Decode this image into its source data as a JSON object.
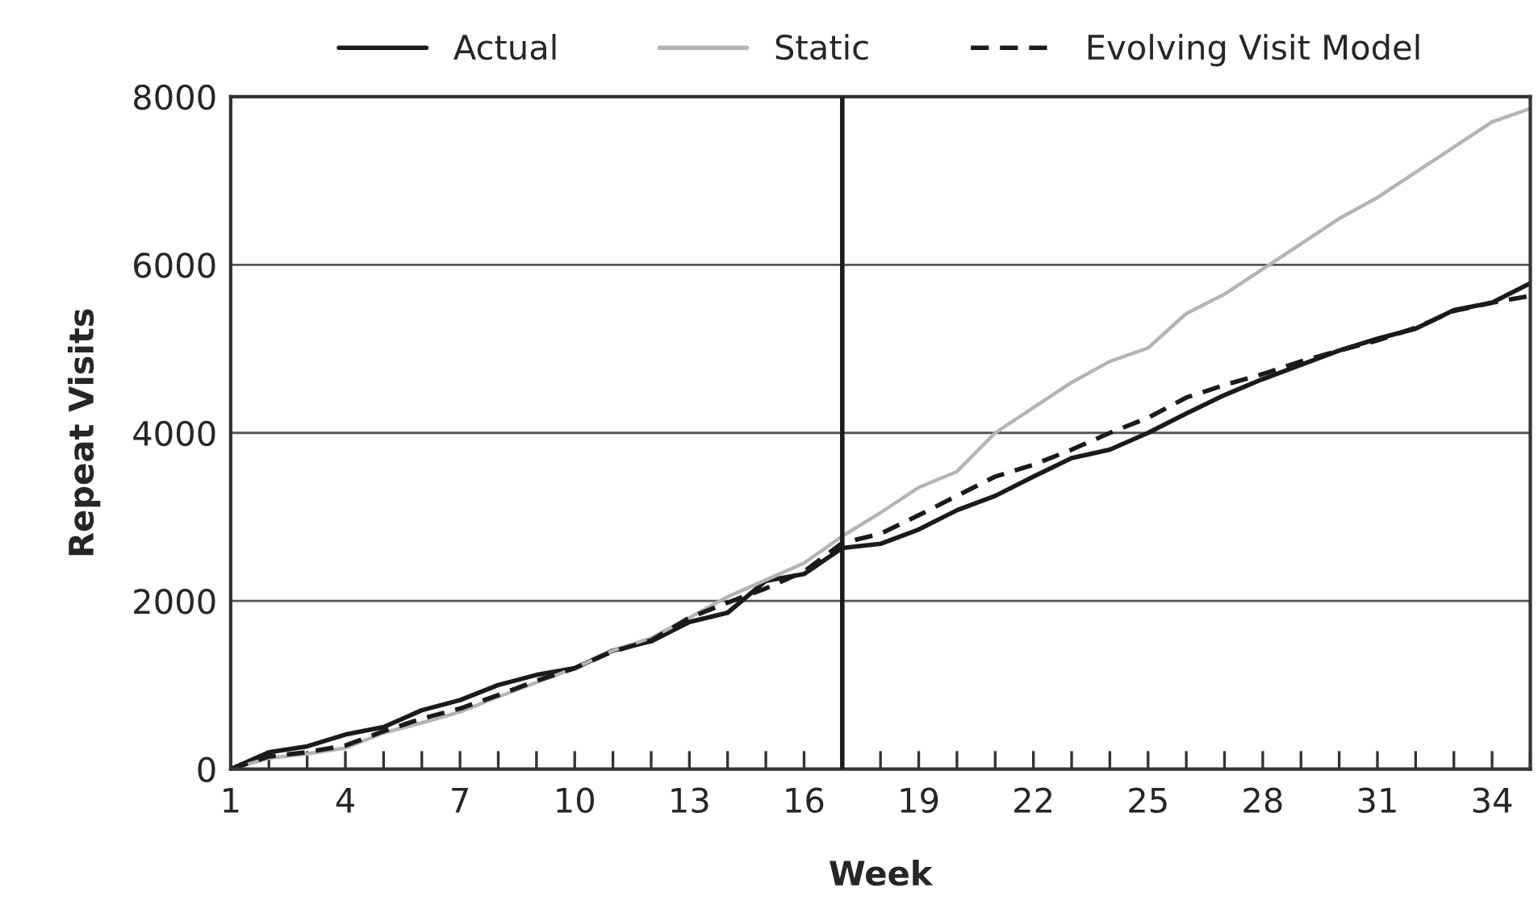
{
  "chart_data": {
    "type": "line",
    "xlabel": "Week",
    "ylabel": "Repeat Visits",
    "x": [
      1,
      2,
      3,
      4,
      5,
      6,
      7,
      8,
      9,
      10,
      11,
      12,
      13,
      14,
      15,
      16,
      17,
      18,
      19,
      20,
      21,
      22,
      23,
      24,
      25,
      26,
      27,
      28,
      29,
      30,
      31,
      32,
      33,
      34,
      35
    ],
    "series": [
      {
        "name": "Actual",
        "color": "#1a1a1a",
        "line_style": "solid",
        "values": [
          0,
          200,
          270,
          410,
          500,
          700,
          820,
          1000,
          1120,
          1200,
          1410,
          1520,
          1750,
          1860,
          2240,
          2320,
          2630,
          2680,
          2850,
          3080,
          3250,
          3480,
          3700,
          3800,
          4000,
          4230,
          4450,
          4640,
          4810,
          4980,
          5120,
          5240,
          5460,
          5550,
          5780
        ]
      },
      {
        "name": "Static",
        "color": "#b4b4b4",
        "line_style": "solid",
        "values": [
          0,
          130,
          180,
          250,
          430,
          550,
          680,
          860,
          1030,
          1200,
          1410,
          1560,
          1800,
          2050,
          2250,
          2450,
          2770,
          3050,
          3350,
          3540,
          4000,
          4300,
          4600,
          4850,
          5010,
          5420,
          5650,
          5950,
          6250,
          6550,
          6800,
          7100,
          7400,
          7700,
          7860
        ]
      },
      {
        "name": "Evolving Visit Model",
        "color": "#1a1a1a",
        "line_style": "dashed",
        "values": [
          0,
          150,
          200,
          280,
          450,
          600,
          720,
          880,
          1050,
          1200,
          1400,
          1530,
          1800,
          1980,
          2150,
          2350,
          2690,
          2800,
          3020,
          3250,
          3480,
          3620,
          3800,
          4000,
          4180,
          4420,
          4570,
          4700,
          4850,
          4980,
          5100,
          5250,
          5450,
          5550,
          5630
        ]
      }
    ],
    "xlim": [
      1,
      35
    ],
    "xticks": [
      1,
      {
        "value": 2,
        "label": null
      },
      {
        "value": 3,
        "label": null
      },
      4,
      {
        "value": 5,
        "label": null
      },
      {
        "value": 6,
        "label": null
      },
      7,
      {
        "value": 8,
        "label": null
      },
      {
        "value": 9,
        "label": null
      },
      10,
      {
        "value": 11,
        "label": null
      },
      {
        "value": 12,
        "label": null
      },
      13,
      {
        "value": 14,
        "label": null
      },
      {
        "value": 15,
        "label": null
      },
      16,
      {
        "value": 17,
        "label": null
      },
      {
        "value": 18,
        "label": null
      },
      19,
      {
        "value": 20,
        "label": null
      },
      {
        "value": 21,
        "label": null
      },
      22,
      {
        "value": 23,
        "label": null
      },
      {
        "value": 24,
        "label": null
      },
      25,
      {
        "value": 26,
        "label": null
      },
      {
        "value": 27,
        "label": null
      },
      28,
      {
        "value": 29,
        "label": null
      },
      {
        "value": 30,
        "label": null
      },
      31,
      {
        "value": 32,
        "label": null
      },
      {
        "value": 33,
        "label": null
      },
      34,
      {
        "value": 35,
        "label": null
      }
    ],
    "ylim": [
      0,
      8000
    ],
    "yticks": [
      0,
      2000,
      4000,
      6000,
      8000
    ],
    "ref_lines": [
      {
        "axis": "x",
        "value": 17,
        "color": "#1a1a1a",
        "line_style": "solid"
      }
    ],
    "grid": "y",
    "legend": "top",
    "marker": "none"
  }
}
